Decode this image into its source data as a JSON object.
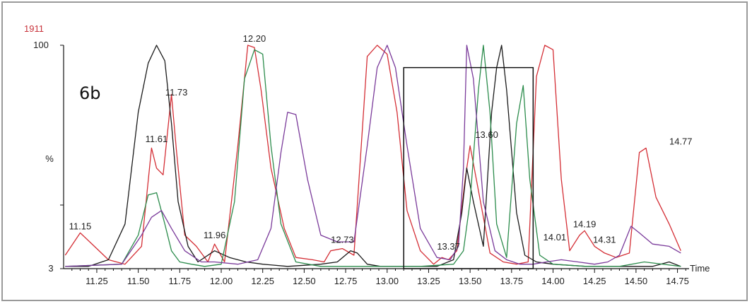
{
  "chart_data": {
    "type": "line",
    "panel_label": "6b",
    "intensity_label": "1911",
    "y_top_label": "100",
    "y_mid_label": "%",
    "y_bottom_label": "3",
    "xlabel": "Time",
    "xlim": [
      11.05,
      14.82
    ],
    "ylim": [
      0,
      100
    ],
    "x_ticks": [
      "11.25",
      "11.50",
      "11.75",
      "12.00",
      "12.25",
      "12.50",
      "12.75",
      "13.00",
      "13.25",
      "13.50",
      "13.75",
      "14.00",
      "14.25",
      "14.50",
      "14.75"
    ],
    "highlight_box": {
      "x": [
        13.1,
        13.88
      ],
      "y": [
        0,
        90
      ]
    },
    "colors": {
      "red": "#d42e35",
      "black": "#1a1a1a",
      "green": "#2c8c4c",
      "purple": "#7a3a9a"
    },
    "peak_labels": [
      {
        "text": "11.15",
        "x": 11.15,
        "y": 16
      },
      {
        "text": "11.61",
        "x": 11.61,
        "y": 55
      },
      {
        "text": "11.73",
        "x": 11.73,
        "y": 76
      },
      {
        "text": "11.96",
        "x": 11.96,
        "y": 12
      },
      {
        "text": "12.20",
        "x": 12.2,
        "y": 100
      },
      {
        "text": "12.73",
        "x": 12.73,
        "y": 10
      },
      {
        "text": "13.37",
        "x": 13.37,
        "y": 7
      },
      {
        "text": "13.60",
        "x": 13.6,
        "y": 57
      },
      {
        "text": "14.01",
        "x": 14.01,
        "y": 11
      },
      {
        "text": "14.19",
        "x": 14.19,
        "y": 17
      },
      {
        "text": "14.31",
        "x": 14.31,
        "y": 10
      },
      {
        "text": "14.77",
        "x": 14.77,
        "y": 54
      }
    ],
    "series": [
      {
        "color": "#d42e35",
        "x": [
          11.06,
          11.15,
          11.25,
          11.32,
          11.42,
          11.52,
          11.58,
          11.61,
          11.65,
          11.7,
          11.73,
          11.78,
          11.85,
          11.92,
          11.96,
          12.02,
          12.1,
          12.16,
          12.2,
          12.24,
          12.3,
          12.38,
          12.45,
          12.55,
          12.62,
          12.66,
          12.73,
          12.8,
          12.88,
          12.94,
          13.0,
          13.06,
          13.12,
          13.2,
          13.28,
          13.33,
          13.37,
          13.42,
          13.47,
          13.5,
          13.55,
          13.62,
          13.7,
          13.78,
          13.85,
          13.9,
          13.95,
          14.0,
          14.05,
          14.1,
          14.16,
          14.19,
          14.25,
          14.31,
          14.38,
          14.46,
          14.52,
          14.56,
          14.62,
          14.7,
          14.77
        ],
        "y": [
          6,
          16,
          9,
          4,
          2,
          10,
          54,
          45,
          42,
          78,
          53,
          15,
          10,
          3,
          11,
          3,
          55,
          100,
          99,
          80,
          45,
          18,
          5,
          4,
          3,
          8,
          9,
          6,
          95,
          100,
          96,
          70,
          26,
          8,
          2,
          5,
          4,
          8,
          40,
          55,
          35,
          7,
          3,
          2,
          3,
          86,
          100,
          98,
          40,
          8,
          15,
          17,
          10,
          7,
          5,
          7,
          52,
          54,
          32,
          20,
          8
        ]
      },
      {
        "color": "#1a1a1a",
        "x": [
          11.06,
          11.2,
          11.32,
          11.42,
          11.5,
          11.56,
          11.61,
          11.66,
          11.7,
          11.74,
          11.8,
          11.86,
          11.96,
          12.05,
          12.15,
          12.25,
          12.4,
          12.6,
          12.7,
          12.78,
          12.82,
          12.88,
          12.96,
          13.1,
          13.3,
          13.4,
          13.45,
          13.48,
          13.52,
          13.58,
          13.63,
          13.66,
          13.69,
          13.72,
          13.78,
          13.83,
          13.9,
          14.0,
          14.2,
          14.4,
          14.6,
          14.7,
          14.77
        ],
        "y": [
          1,
          1,
          4,
          20,
          70,
          92,
          100,
          93,
          65,
          30,
          10,
          3,
          8,
          5,
          3,
          2,
          1,
          2,
          3,
          8,
          7,
          2,
          1,
          1,
          1,
          4,
          25,
          45,
          30,
          10,
          70,
          90,
          100,
          80,
          25,
          6,
          3,
          2,
          1,
          1,
          1,
          3,
          1
        ]
      },
      {
        "color": "#2c8c4c",
        "x": [
          11.06,
          11.4,
          11.5,
          11.56,
          11.61,
          11.66,
          11.7,
          11.75,
          11.82,
          11.9,
          12.0,
          12.08,
          12.14,
          12.2,
          12.25,
          12.3,
          12.36,
          12.45,
          12.6,
          12.9,
          13.2,
          13.4,
          13.46,
          13.5,
          13.55,
          13.58,
          13.62,
          13.66,
          13.72,
          13.78,
          13.82,
          13.86,
          13.92,
          14.0,
          14.2,
          14.4,
          14.55,
          14.77
        ],
        "y": [
          1,
          2,
          15,
          33,
          34,
          20,
          8,
          3,
          2,
          1,
          2,
          30,
          85,
          98,
          96,
          55,
          20,
          3,
          1,
          1,
          1,
          2,
          8,
          30,
          80,
          100,
          70,
          20,
          5,
          65,
          82,
          40,
          6,
          2,
          1,
          1,
          3,
          1
        ]
      },
      {
        "color": "#7a3a9a",
        "x": [
          11.06,
          11.4,
          11.52,
          11.58,
          11.64,
          11.7,
          11.78,
          11.88,
          11.96,
          12.1,
          12.22,
          12.3,
          12.36,
          12.4,
          12.45,
          12.52,
          12.6,
          12.7,
          12.8,
          12.88,
          12.94,
          13.0,
          13.05,
          13.12,
          13.2,
          13.3,
          13.38,
          13.43,
          13.46,
          13.48,
          13.52,
          13.58,
          13.65,
          13.72,
          13.8,
          13.88,
          13.96,
          14.05,
          14.15,
          14.25,
          14.33,
          14.4,
          14.47,
          14.52,
          14.6,
          14.7,
          14.77
        ],
        "y": [
          1,
          2,
          15,
          23,
          26,
          18,
          8,
          3,
          3,
          2,
          4,
          18,
          52,
          70,
          69,
          40,
          15,
          12,
          12,
          55,
          90,
          100,
          90,
          55,
          18,
          5,
          4,
          10,
          45,
          100,
          85,
          30,
          8,
          4,
          2,
          2,
          3,
          4,
          3,
          2,
          3,
          6,
          19,
          16,
          11,
          10,
          7
        ]
      }
    ]
  }
}
